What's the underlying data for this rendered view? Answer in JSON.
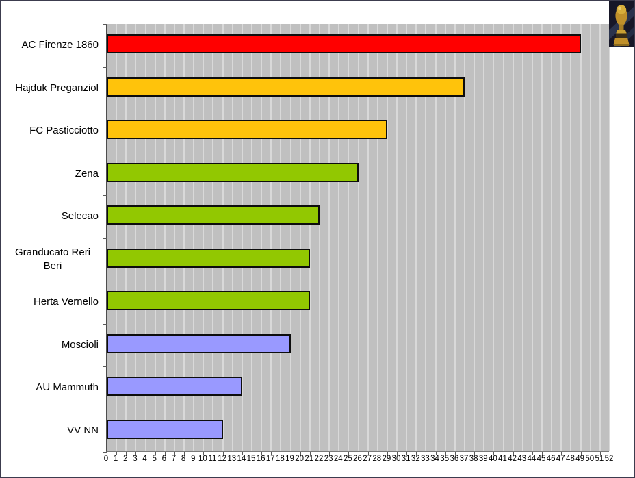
{
  "window": {
    "background_color": "#ffffff",
    "frame_border_color": "#3c3c4e"
  },
  "trophy_icon": {
    "name": "world-cup-trophy",
    "gold_color": "#c99b2b",
    "background_color": "#171728"
  },
  "chart_data": {
    "type": "bar",
    "orientation": "horizontal",
    "title": "",
    "xlabel": "",
    "ylabel": "",
    "categories": [
      "AC Firenze 1860",
      "Hajduk Preganziol",
      "FC Pasticciotto",
      "Zena",
      "Selecao",
      "Granducato Reri Beri",
      "Herta Vernello",
      "Moscioli",
      "AU Mammuth",
      "VV NN"
    ],
    "values": [
      49,
      37,
      29,
      26,
      22,
      21,
      21,
      19,
      14,
      12
    ],
    "bar_colors": [
      "#ff0000",
      "#ffc30b",
      "#ffc30b",
      "#92c801",
      "#92c801",
      "#92c801",
      "#92c801",
      "#9999ff",
      "#9999ff",
      "#9999ff"
    ],
    "xlim": [
      0,
      52
    ],
    "x_tick_step": 1,
    "grid": true,
    "legend": "none",
    "plot_background_color": "#c0c0c0",
    "gridline_color": "#d9d9d9",
    "bar_border_color": "#0d0d0d"
  }
}
